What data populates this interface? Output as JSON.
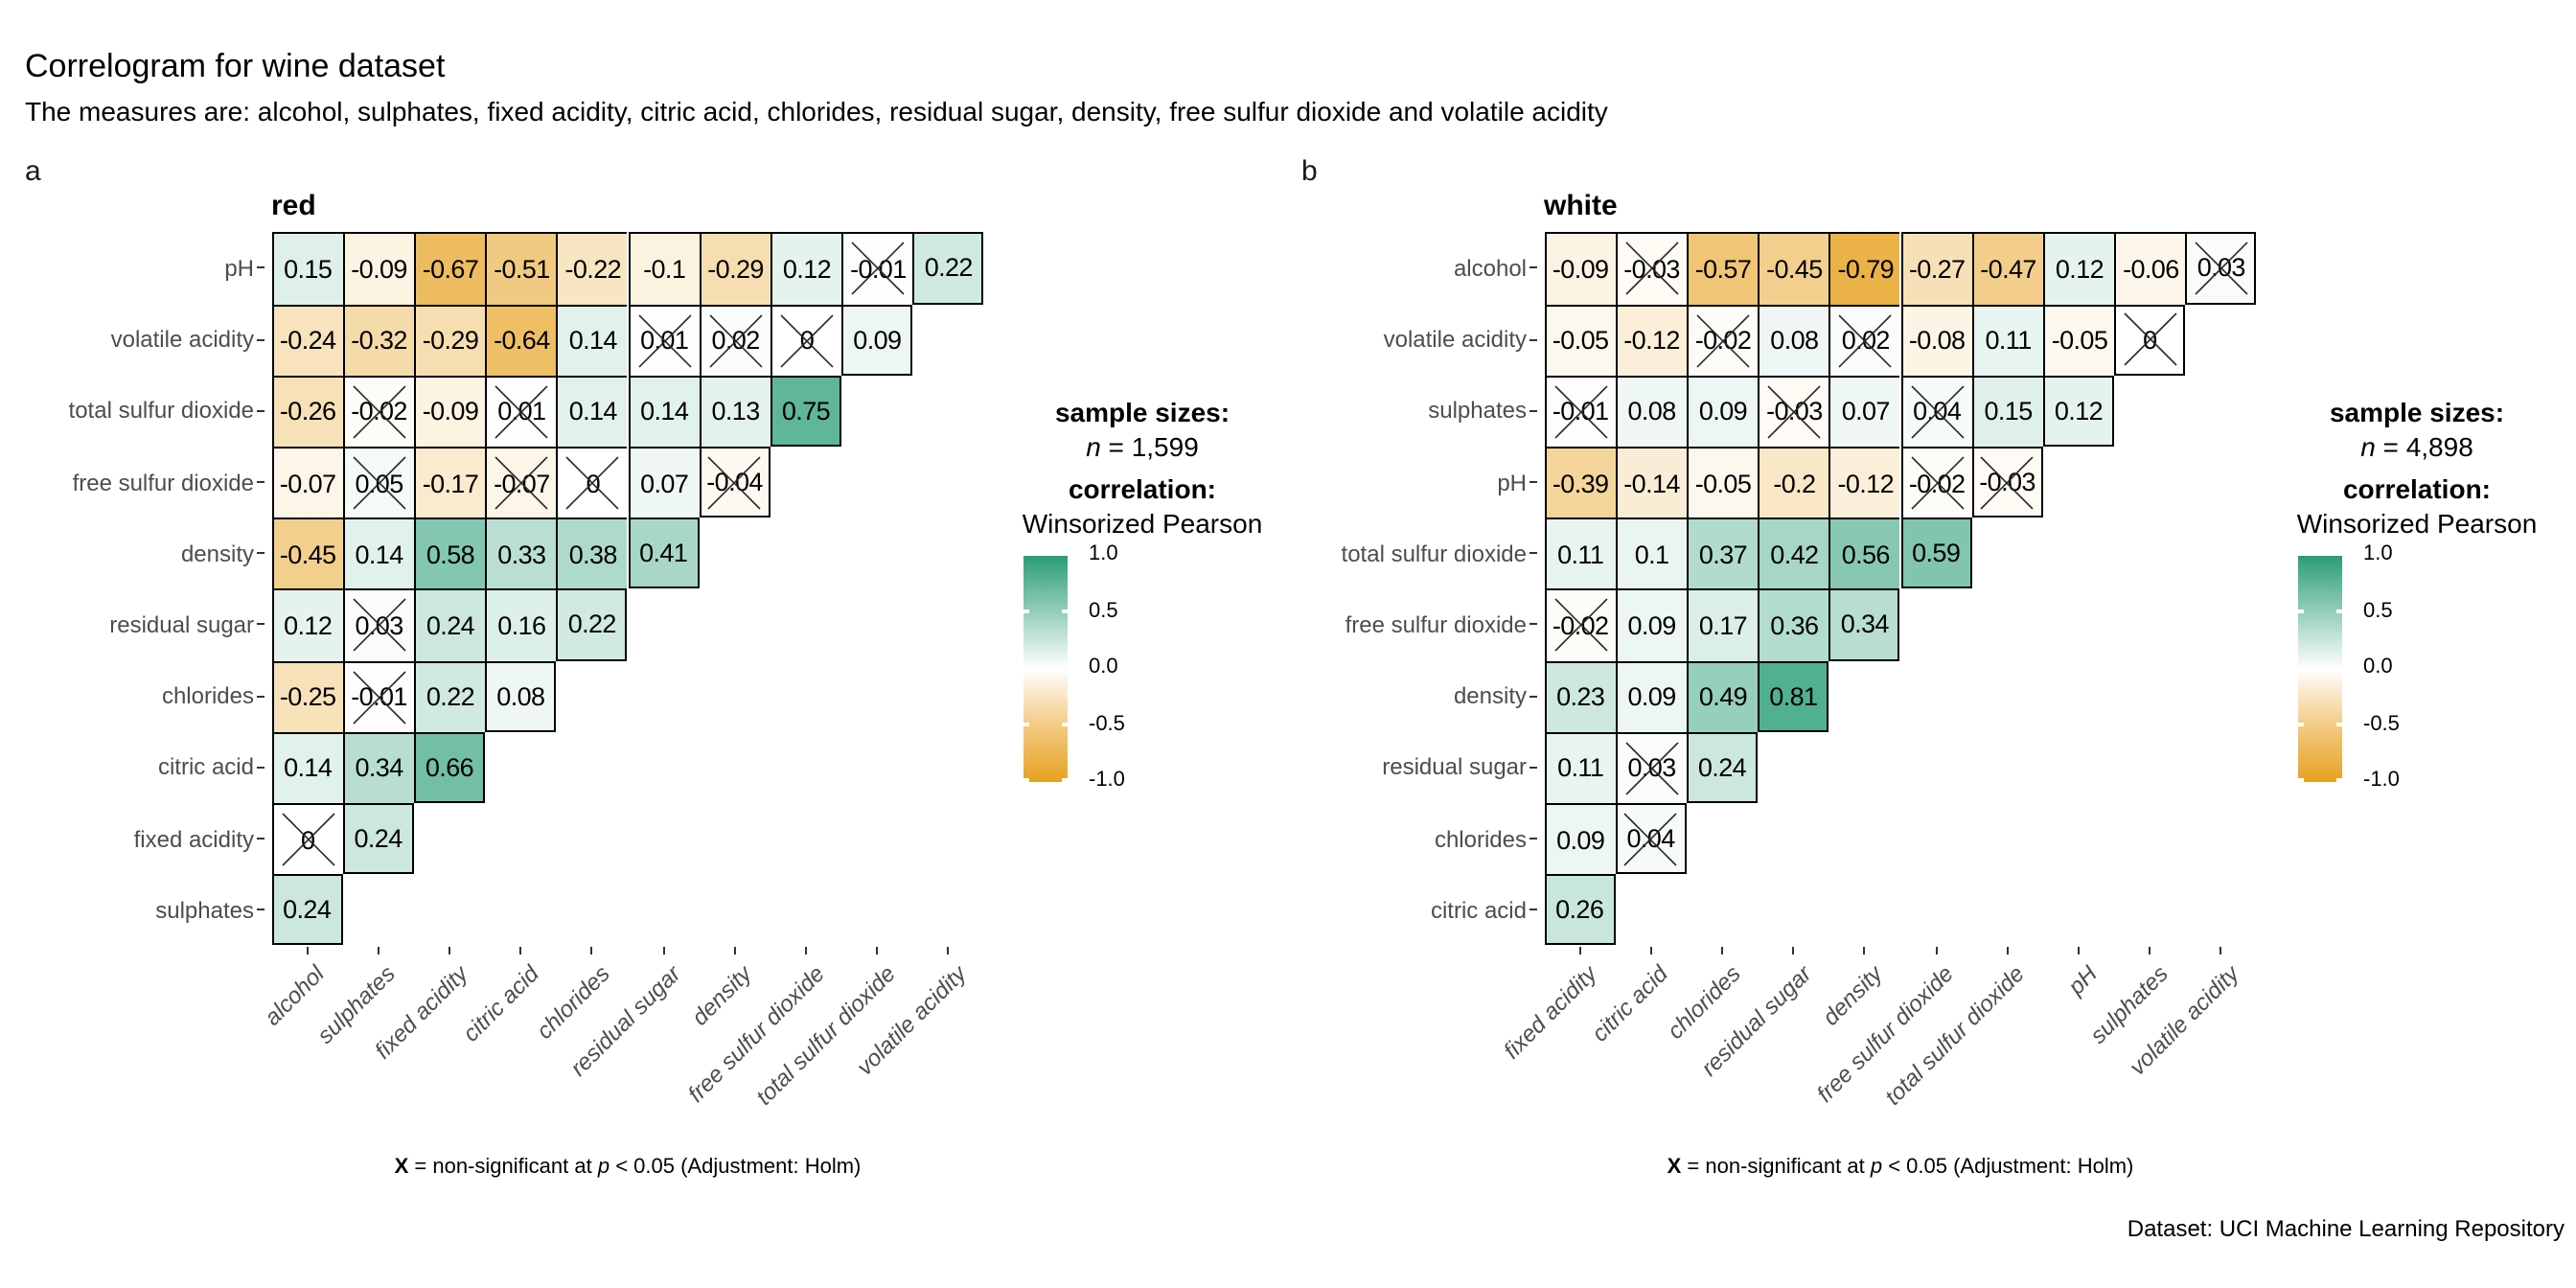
{
  "title": "Correlogram for wine dataset",
  "subtitle": "The measures are: alcohol, sulphates, fixed acidity, citric acid, chlorides, residual sugar, density, free sulfur dioxide and volatile acidity",
  "caption": "Dataset: UCI Machine Learning Repository",
  "footnote": {
    "x_symbol": "X",
    "text_mid": " = non-significant at ",
    "p_symbol": "p",
    "text_end": " < 0.05 (Adjustment: Holm)"
  },
  "legend": {
    "sample_sizes_label": "sample sizes:",
    "correlation_label": "correlation:",
    "method": "Winsorized Pearson",
    "ticks": [
      "1.0",
      "0.5",
      "0.0",
      "-0.5",
      "-1.0"
    ]
  },
  "colors": {
    "positive_end": "#2A9D78",
    "negative_end": "#E7A120",
    "midpoint": "#FFFFFF",
    "cell_border": "#000000",
    "axis_text": "#4D4D4D",
    "axis_tick": "#333333"
  },
  "chart_data": [
    {
      "type": "heatmap",
      "tag": "a",
      "title": "red",
      "n_label": "n",
      "n_text": " = 1,599",
      "value_range": [
        -1,
        1
      ],
      "legend_position": "right",
      "x_labels": [
        "alcohol",
        "sulphates",
        "fixed acidity",
        "citric acid",
        "chlorides",
        "residual sugar",
        "density",
        "free sulfur dioxide",
        "total sulfur dioxide",
        "volatile acidity"
      ],
      "y_labels": [
        "pH",
        "volatile acidity",
        "total sulfur dioxide",
        "free sulfur dioxide",
        "density",
        "residual sugar",
        "chlorides",
        "citric acid",
        "fixed acidity",
        "sulphates"
      ],
      "cells": [
        [
          {
            "v": "0.15",
            "ns": false
          },
          {
            "v": "-0.09",
            "ns": false
          },
          {
            "v": "-0.67",
            "ns": false
          },
          {
            "v": "-0.51",
            "ns": false
          },
          {
            "v": "-0.22",
            "ns": false
          },
          {
            "v": "-0.1",
            "ns": false
          },
          {
            "v": "-0.29",
            "ns": false
          },
          {
            "v": "0.12",
            "ns": false
          },
          {
            "v": "-0.01",
            "ns": true
          },
          {
            "v": "0.22",
            "ns": false
          }
        ],
        [
          {
            "v": "-0.24",
            "ns": false
          },
          {
            "v": "-0.32",
            "ns": false
          },
          {
            "v": "-0.29",
            "ns": false
          },
          {
            "v": "-0.64",
            "ns": false
          },
          {
            "v": "0.14",
            "ns": false
          },
          {
            "v": "0.01",
            "ns": true
          },
          {
            "v": "0.02",
            "ns": true
          },
          {
            "v": "0",
            "ns": true
          },
          {
            "v": "0.09",
            "ns": false
          }
        ],
        [
          {
            "v": "-0.26",
            "ns": false
          },
          {
            "v": "-0.02",
            "ns": true
          },
          {
            "v": "-0.09",
            "ns": false
          },
          {
            "v": "0.01",
            "ns": true
          },
          {
            "v": "0.14",
            "ns": false
          },
          {
            "v": "0.14",
            "ns": false
          },
          {
            "v": "0.13",
            "ns": false
          },
          {
            "v": "0.75",
            "ns": false
          }
        ],
        [
          {
            "v": "-0.07",
            "ns": false
          },
          {
            "v": "0.05",
            "ns": true
          },
          {
            "v": "-0.17",
            "ns": false
          },
          {
            "v": "-0.07",
            "ns": true
          },
          {
            "v": "0",
            "ns": true
          },
          {
            "v": "0.07",
            "ns": false
          },
          {
            "v": "-0.04",
            "ns": true
          }
        ],
        [
          {
            "v": "-0.45",
            "ns": false
          },
          {
            "v": "0.14",
            "ns": false
          },
          {
            "v": "0.58",
            "ns": false
          },
          {
            "v": "0.33",
            "ns": false
          },
          {
            "v": "0.38",
            "ns": false
          },
          {
            "v": "0.41",
            "ns": false
          }
        ],
        [
          {
            "v": "0.12",
            "ns": false
          },
          {
            "v": "0.03",
            "ns": true
          },
          {
            "v": "0.24",
            "ns": false
          },
          {
            "v": "0.16",
            "ns": false
          },
          {
            "v": "0.22",
            "ns": false
          }
        ],
        [
          {
            "v": "-0.25",
            "ns": false
          },
          {
            "v": "-0.01",
            "ns": true
          },
          {
            "v": "0.22",
            "ns": false
          },
          {
            "v": "0.08",
            "ns": false
          }
        ],
        [
          {
            "v": "0.14",
            "ns": false
          },
          {
            "v": "0.34",
            "ns": false
          },
          {
            "v": "0.66",
            "ns": false
          }
        ],
        [
          {
            "v": "0",
            "ns": true
          },
          {
            "v": "0.24",
            "ns": false
          }
        ],
        [
          {
            "v": "0.24",
            "ns": false
          }
        ]
      ]
    },
    {
      "type": "heatmap",
      "tag": "b",
      "title": "white",
      "n_label": "n",
      "n_text": " = 4,898",
      "value_range": [
        -1,
        1
      ],
      "legend_position": "right",
      "x_labels": [
        "fixed acidity",
        "citric acid",
        "chlorides",
        "residual sugar",
        "density",
        "free sulfur dioxide",
        "total sulfur dioxide",
        "pH",
        "sulphates",
        "volatile acidity"
      ],
      "y_labels": [
        "alcohol",
        "volatile acidity",
        "sulphates",
        "pH",
        "total sulfur dioxide",
        "free sulfur dioxide",
        "density",
        "residual sugar",
        "chlorides",
        "citric acid"
      ],
      "cells": [
        [
          {
            "v": "-0.09",
            "ns": false
          },
          {
            "v": "-0.03",
            "ns": true
          },
          {
            "v": "-0.57",
            "ns": false
          },
          {
            "v": "-0.45",
            "ns": false
          },
          {
            "v": "-0.79",
            "ns": false
          },
          {
            "v": "-0.27",
            "ns": false
          },
          {
            "v": "-0.47",
            "ns": false
          },
          {
            "v": "0.12",
            "ns": false
          },
          {
            "v": "-0.06",
            "ns": false
          },
          {
            "v": "0.03",
            "ns": true
          }
        ],
        [
          {
            "v": "-0.05",
            "ns": false
          },
          {
            "v": "-0.12",
            "ns": false
          },
          {
            "v": "-0.02",
            "ns": true
          },
          {
            "v": "0.08",
            "ns": false
          },
          {
            "v": "0.02",
            "ns": true
          },
          {
            "v": "-0.08",
            "ns": false
          },
          {
            "v": "0.11",
            "ns": false
          },
          {
            "v": "-0.05",
            "ns": false
          },
          {
            "v": "0",
            "ns": true
          }
        ],
        [
          {
            "v": "-0.01",
            "ns": true
          },
          {
            "v": "0.08",
            "ns": false
          },
          {
            "v": "0.09",
            "ns": false
          },
          {
            "v": "-0.03",
            "ns": true
          },
          {
            "v": "0.07",
            "ns": false
          },
          {
            "v": "0.04",
            "ns": true
          },
          {
            "v": "0.15",
            "ns": false
          },
          {
            "v": "0.12",
            "ns": false
          }
        ],
        [
          {
            "v": "-0.39",
            "ns": false
          },
          {
            "v": "-0.14",
            "ns": false
          },
          {
            "v": "-0.05",
            "ns": false
          },
          {
            "v": "-0.2",
            "ns": false
          },
          {
            "v": "-0.12",
            "ns": false
          },
          {
            "v": "-0.02",
            "ns": true
          },
          {
            "v": "-0.03",
            "ns": true
          }
        ],
        [
          {
            "v": "0.11",
            "ns": false
          },
          {
            "v": "0.1",
            "ns": false
          },
          {
            "v": "0.37",
            "ns": false
          },
          {
            "v": "0.42",
            "ns": false
          },
          {
            "v": "0.56",
            "ns": false
          },
          {
            "v": "0.59",
            "ns": false
          }
        ],
        [
          {
            "v": "-0.02",
            "ns": true
          },
          {
            "v": "0.09",
            "ns": false
          },
          {
            "v": "0.17",
            "ns": false
          },
          {
            "v": "0.36",
            "ns": false
          },
          {
            "v": "0.34",
            "ns": false
          }
        ],
        [
          {
            "v": "0.23",
            "ns": false
          },
          {
            "v": "0.09",
            "ns": false
          },
          {
            "v": "0.49",
            "ns": false
          },
          {
            "v": "0.81",
            "ns": false
          }
        ],
        [
          {
            "v": "0.11",
            "ns": false
          },
          {
            "v": "0.03",
            "ns": true
          },
          {
            "v": "0.24",
            "ns": false
          }
        ],
        [
          {
            "v": "0.09",
            "ns": false
          },
          {
            "v": "0.04",
            "ns": true
          }
        ],
        [
          {
            "v": "0.26",
            "ns": false
          }
        ]
      ]
    }
  ]
}
